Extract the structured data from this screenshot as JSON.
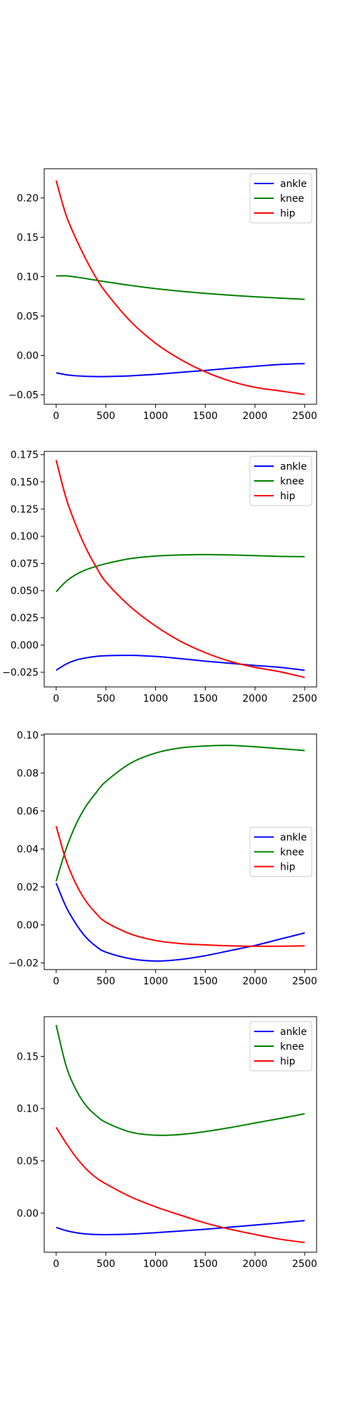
{
  "chart_data": [
    {
      "type": "line",
      "x": [
        0,
        100,
        200,
        300,
        400,
        500,
        750,
        1000,
        1250,
        1500,
        1750,
        2000,
        2250,
        2500
      ],
      "xlim": [
        -120,
        2620
      ],
      "ylim": [
        -0.062,
        0.237
      ],
      "xticks": [
        0,
        500,
        1000,
        1500,
        2000,
        2500
      ],
      "yticks": [
        -0.05,
        0.0,
        0.05,
        0.1,
        0.15,
        0.2
      ],
      "ytick_labels": [
        "−0.05",
        "0.00",
        "0.05",
        "0.10",
        "0.15",
        "0.20"
      ],
      "legend_position": "top-right",
      "series": [
        {
          "name": "ankle",
          "color": "#0000ff",
          "values": [
            -0.022,
            -0.0245,
            -0.0258,
            -0.0265,
            -0.0268,
            -0.0268,
            -0.0258,
            -0.024,
            -0.0215,
            -0.019,
            -0.0163,
            -0.0138,
            -0.0115,
            -0.0103
          ]
        },
        {
          "name": "knee",
          "color": "#008000",
          "values": [
            0.101,
            0.101,
            0.0995,
            0.0975,
            0.0955,
            0.0935,
            0.0888,
            0.0848,
            0.0815,
            0.0788,
            0.0765,
            0.0745,
            0.0728,
            0.0712
          ]
        },
        {
          "name": "hip",
          "color": "#ff0000",
          "values": [
            0.222,
            0.178,
            0.148,
            0.122,
            0.099,
            0.08,
            0.043,
            0.0155,
            -0.005,
            -0.0208,
            -0.0325,
            -0.0405,
            -0.045,
            -0.0495
          ]
        }
      ]
    },
    {
      "type": "line",
      "x": [
        0,
        100,
        200,
        300,
        400,
        500,
        750,
        1000,
        1250,
        1500,
        1750,
        2000,
        2250,
        2500
      ],
      "xlim": [
        -120,
        2620
      ],
      "ylim": [
        -0.0385,
        0.178
      ],
      "xticks": [
        0,
        500,
        1000,
        1500,
        2000,
        2500
      ],
      "yticks": [
        -0.025,
        0.0,
        0.025,
        0.05,
        0.075,
        0.1,
        0.125,
        0.15,
        0.175
      ],
      "ytick_labels": [
        "−0.025",
        "0.000",
        "0.025",
        "0.050",
        "0.075",
        "0.100",
        "0.125",
        "0.150",
        "0.175"
      ],
      "legend_position": "top-right",
      "series": [
        {
          "name": "ankle",
          "color": "#0000ff",
          "values": [
            -0.0232,
            -0.0175,
            -0.0138,
            -0.0118,
            -0.0105,
            -0.0098,
            -0.0095,
            -0.0105,
            -0.0125,
            -0.0148,
            -0.0168,
            -0.0188,
            -0.0205,
            -0.0232
          ]
        },
        {
          "name": "knee",
          "color": "#008000",
          "values": [
            0.049,
            0.0585,
            0.0648,
            0.0692,
            0.0722,
            0.0748,
            0.0795,
            0.0818,
            0.0828,
            0.0832,
            0.0828,
            0.0822,
            0.0815,
            0.0812
          ]
        },
        {
          "name": "hip",
          "color": "#ff0000",
          "values": [
            0.17,
            0.135,
            0.11,
            0.089,
            0.0722,
            0.058,
            0.035,
            0.0175,
            0.0035,
            -0.007,
            -0.015,
            -0.0205,
            -0.0245,
            -0.0298
          ]
        }
      ]
    },
    {
      "type": "line",
      "x": [
        0,
        100,
        200,
        300,
        400,
        500,
        750,
        1000,
        1250,
        1500,
        1750,
        2000,
        2250,
        2500
      ],
      "xlim": [
        -120,
        2620
      ],
      "ylim": [
        -0.0235,
        0.1005
      ],
      "xticks": [
        0,
        500,
        1000,
        1500,
        2000,
        2500
      ],
      "yticks": [
        -0.02,
        0.0,
        0.02,
        0.04,
        0.06,
        0.08,
        0.1
      ],
      "ytick_labels": [
        "−0.02",
        "0.00",
        "0.02",
        "0.04",
        "0.06",
        "0.08",
        "0.10"
      ],
      "legend_position": "center-right",
      "series": [
        {
          "name": "ankle",
          "color": "#0000ff",
          "values": [
            0.022,
            0.0095,
            0.0005,
            -0.0065,
            -0.0112,
            -0.0143,
            -0.0178,
            -0.019,
            -0.0182,
            -0.0162,
            -0.0135,
            -0.0108,
            -0.0075,
            -0.0042
          ]
        },
        {
          "name": "knee",
          "color": "#008000",
          "values": [
            0.023,
            0.04,
            0.053,
            0.0625,
            0.0695,
            0.0755,
            0.0852,
            0.0905,
            0.0932,
            0.0942,
            0.0945,
            0.0938,
            0.0928,
            0.0918
          ]
        },
        {
          "name": "hip",
          "color": "#ff0000",
          "values": [
            0.052,
            0.034,
            0.0215,
            0.0125,
            0.0062,
            0.0015,
            -0.0048,
            -0.0082,
            -0.0098,
            -0.0105,
            -0.011,
            -0.0112,
            -0.0112,
            -0.011
          ]
        }
      ]
    },
    {
      "type": "line",
      "x": [
        0,
        100,
        200,
        300,
        400,
        500,
        750,
        1000,
        1250,
        1500,
        1750,
        2000,
        2250,
        2500
      ],
      "xlim": [
        -120,
        2620
      ],
      "ylim": [
        -0.0375,
        0.188
      ],
      "xticks": [
        0,
        500,
        1000,
        1500,
        2000,
        2500
      ],
      "yticks": [
        0.0,
        0.05,
        0.1,
        0.15
      ],
      "ytick_labels": [
        "0.00",
        "0.05",
        "0.10",
        "0.15"
      ],
      "legend_position": "top-right",
      "series": [
        {
          "name": "ankle",
          "color": "#0000ff",
          "values": [
            -0.0138,
            -0.0168,
            -0.0188,
            -0.02,
            -0.0205,
            -0.0207,
            -0.0202,
            -0.0188,
            -0.0172,
            -0.0155,
            -0.0135,
            -0.0115,
            -0.0095,
            -0.0072
          ]
        },
        {
          "name": "knee",
          "color": "#008000",
          "values": [
            0.18,
            0.141,
            0.118,
            0.103,
            0.0935,
            0.0868,
            0.0775,
            0.0745,
            0.0752,
            0.078,
            0.0818,
            0.0862,
            0.0905,
            0.095
          ]
        },
        {
          "name": "hip",
          "color": "#ff0000",
          "values": [
            0.082,
            0.067,
            0.0535,
            0.0425,
            0.034,
            0.028,
            0.0155,
            0.006,
            -0.002,
            -0.0095,
            -0.0155,
            -0.0205,
            -0.025,
            -0.0282
          ]
        }
      ]
    }
  ]
}
